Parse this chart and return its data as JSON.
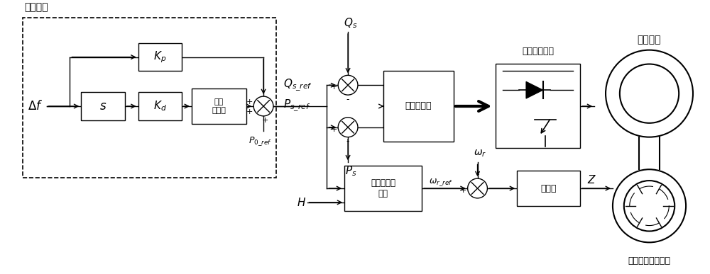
{
  "figsize": [
    10,
    3.87
  ],
  "dpi": 100,
  "bg_color": "#ffffff",
  "line_color": "#000000",
  "labels": {
    "tiaopi": "调频控制",
    "delta_f": "$\\Delta f$",
    "kp": "$K_p$",
    "kd": "$K_d$",
    "s_label": "$s$",
    "filter": "低通\n滤波器",
    "p0_ref": "$\\boldsymbol{P_{0\\_ref}}$",
    "qs_ref": "$\\boldsymbol{Q_{s\\_ref}}$",
    "ps_ref": "$\\boldsymbol{P_{s\\_ref}}$",
    "qs": "$Q_s$",
    "ps": "$P_s$",
    "gonglv": "功率调节器",
    "zhuanzi": "转子侧变换器",
    "shuangkui": "双馈电机",
    "zuijia": "最佳运行点\n选择",
    "omega_r": "$\\omega_r$",
    "omega_r_ref": "$\\boldsymbol{\\omega_{r\\_ref}}$",
    "tiaoshu": "调速器",
    "H": "$H$",
    "Z": "$Z$",
    "kenis": "可逆式水泵水轮机"
  }
}
